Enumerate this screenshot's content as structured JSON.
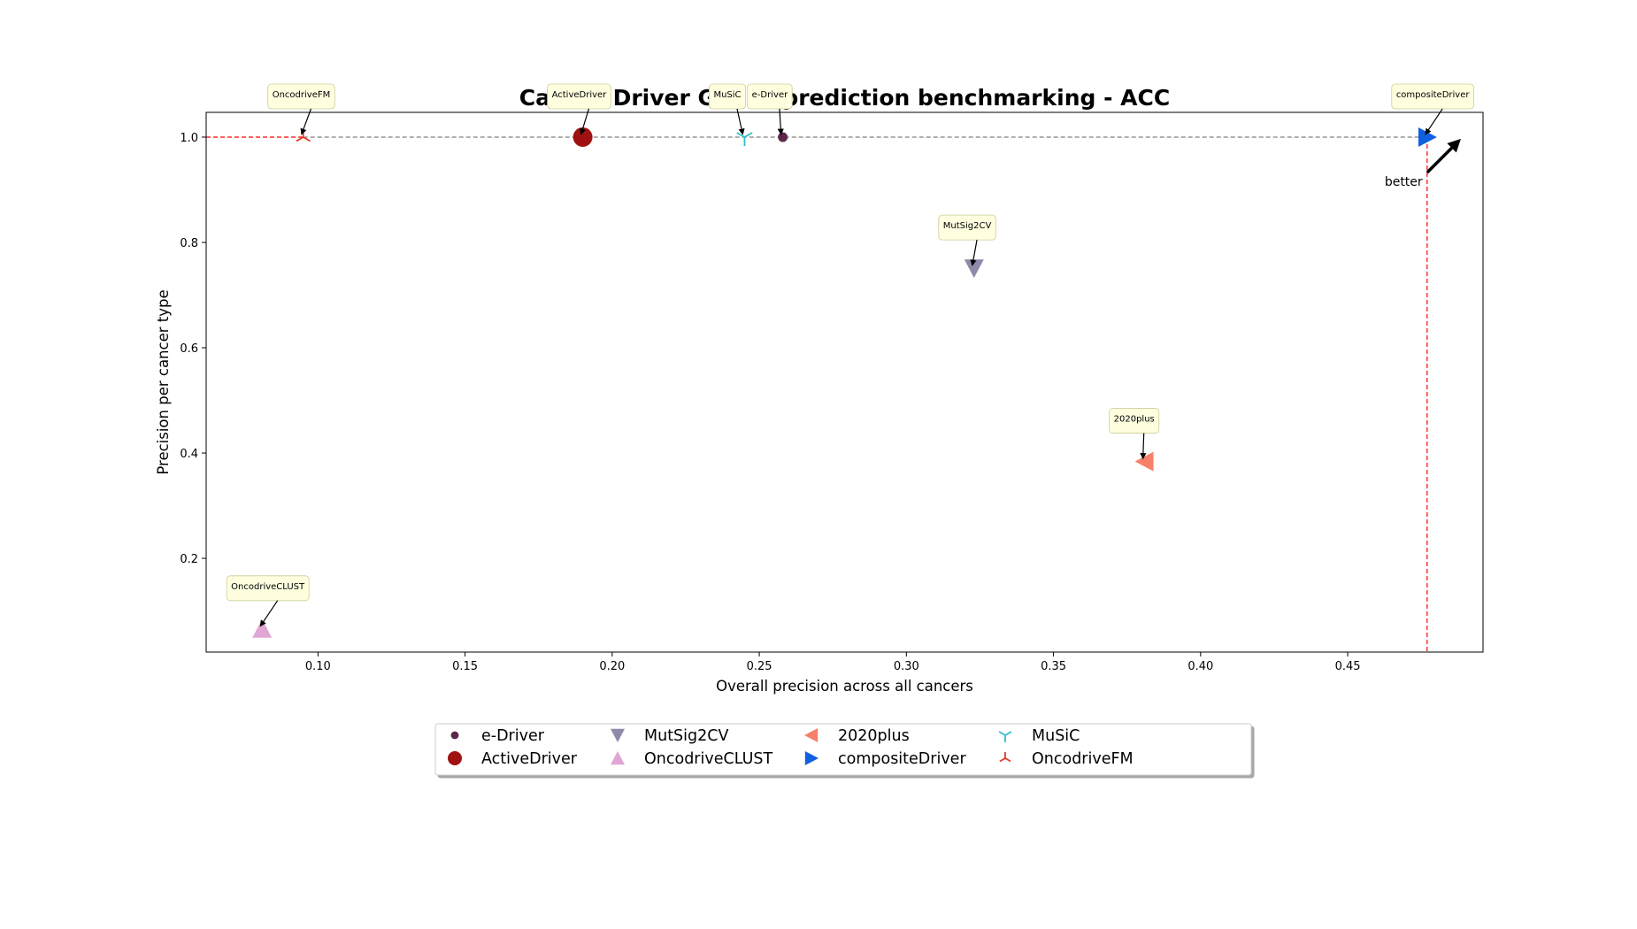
{
  "chart_data": {
    "type": "scatter",
    "title": "Cancer Driver Genes prediction benchmarking - ACC",
    "xlabel": "Overall precision across all cancers",
    "ylabel": "Precision per cancer type",
    "xlim": [
      0.062,
      0.496
    ],
    "ylim": [
      0.022,
      1.047
    ],
    "x_ticks": [
      0.1,
      0.15,
      0.2,
      0.25,
      0.3,
      0.35,
      0.4,
      0.45
    ],
    "x_tick_labels": [
      "0.10",
      "0.15",
      "0.20",
      "0.25",
      "0.30",
      "0.35",
      "0.40",
      "0.45"
    ],
    "y_ticks": [
      0.2,
      0.4,
      0.6,
      0.8,
      1.0
    ],
    "y_tick_labels": [
      "0.2",
      "0.4",
      "0.6",
      "0.8",
      "1.0"
    ],
    "grid": false,
    "legend_placement": "bottom-center",
    "better_label": "better",
    "pareto_frontier": [
      [
        0.095,
        1.0
      ],
      [
        0.477,
        1.0
      ]
    ],
    "series": [
      {
        "name": "e-Driver",
        "x": 0.258,
        "y": 1.0,
        "marker": "circle-small",
        "color": "#5b2848",
        "annotation": "e-Driver"
      },
      {
        "name": "ActiveDriver",
        "x": 0.19,
        "y": 1.0,
        "marker": "circle",
        "color": "#a01212",
        "annotation": "ActiveDriver"
      },
      {
        "name": "MutSig2CV",
        "x": 0.323,
        "y": 0.751,
        "marker": "triangle-down",
        "color": "#8e8aaa",
        "annotation": "MutSig2CV"
      },
      {
        "name": "OncodriveCLUST",
        "x": 0.081,
        "y": 0.066,
        "marker": "triangle-up",
        "color": "#e0a6d4",
        "annotation": "OncodriveCLUST"
      },
      {
        "name": "2020plus",
        "x": 0.381,
        "y": 0.384,
        "marker": "triangle-left",
        "color": "#f6806a",
        "annotation": "2020plus"
      },
      {
        "name": "compositeDriver",
        "x": 0.477,
        "y": 1.0,
        "marker": "triangle-right",
        "color": "#1060e0",
        "annotation": "compositeDriver"
      },
      {
        "name": "MuSiC",
        "x": 0.245,
        "y": 1.0,
        "marker": "tri-down",
        "color": "#2bbfcc",
        "annotation": "MuSiC"
      },
      {
        "name": "OncodriveFM",
        "x": 0.095,
        "y": 1.0,
        "marker": "tri-up",
        "color": "#e23a24",
        "annotation": "OncodriveFM"
      }
    ]
  }
}
